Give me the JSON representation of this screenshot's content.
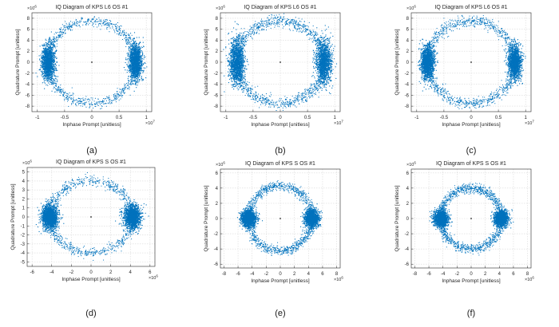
{
  "figure": {
    "panels": [
      "(a)",
      "(b)",
      "(c)",
      "(d)",
      "(e)",
      "(f)"
    ]
  },
  "chart_data": [
    {
      "type": "scatter",
      "title": "IQ Diagram of KPS L6 OS #1",
      "xlabel": "Inphase Prompt [unitless]",
      "ylabel": "Quadrature Prompt [unitless]",
      "x_exponent": "7",
      "y_exponent": "6",
      "xlim": [
        -1.1,
        1.1
      ],
      "ylim": [
        -9,
        9
      ],
      "xticks": [
        -1,
        -0.5,
        0,
        0.5,
        1
      ],
      "xtick_labels": [
        "-1",
        "-0.5",
        "0",
        "0.5",
        "1"
      ],
      "yticks": [
        -8,
        -6,
        -4,
        -2,
        0,
        2,
        4,
        6,
        8
      ],
      "ytick_labels": [
        "-8",
        "-6",
        "-4",
        "-2",
        "0",
        "2",
        "4",
        "6",
        "8"
      ],
      "grid": true,
      "series": [
        {
          "color": "#0072BD",
          "clusters": [
            {
              "center": [
                -0.8,
                0
              ],
              "spread": [
                0.06,
                1.6
              ],
              "count": 1400
            },
            {
              "center": [
                0.8,
                0
              ],
              "spread": [
                0.06,
                1.6
              ],
              "count": 1400
            }
          ],
          "ring": {
            "radius": [
              0.8,
              7.5
            ],
            "jitter": [
              0.04,
              0.45
            ],
            "count": 1100
          }
        }
      ],
      "label": "(a)"
    },
    {
      "type": "scatter",
      "title": "IQ Diagram of KPS L6 OS #1",
      "xlabel": "Inphase Prompt [unitless]",
      "ylabel": "Quadrature Prompt [unitless]",
      "x_exponent": "7",
      "y_exponent": "6",
      "xlim": [
        -1.1,
        1.1
      ],
      "ylim": [
        -9,
        9
      ],
      "xticks": [
        -1,
        -0.5,
        0,
        0.5,
        1
      ],
      "xtick_labels": [
        "-1",
        "-0.5",
        "0",
        "0.5",
        "1"
      ],
      "yticks": [
        -8,
        -6,
        -4,
        -2,
        0,
        2,
        4,
        6,
        8
      ],
      "ytick_labels": [
        "-8",
        "-6",
        "-4",
        "-2",
        "0",
        "2",
        "4",
        "6",
        "8"
      ],
      "grid": true,
      "series": [
        {
          "color": "#0072BD",
          "clusters": [
            {
              "center": [
                -0.8,
                0
              ],
              "spread": [
                0.07,
                2.0
              ],
              "count": 1400
            },
            {
              "center": [
                0.8,
                0
              ],
              "spread": [
                0.07,
                2.0
              ],
              "count": 1400
            }
          ],
          "ring": {
            "radius": [
              0.8,
              7.5
            ],
            "jitter": [
              0.05,
              0.55
            ],
            "count": 1400
          }
        }
      ],
      "label": "(b)"
    },
    {
      "type": "scatter",
      "title": "IQ Diagram of KPS L6 OS #1",
      "xlabel": "Inphase Prompt [unitless]",
      "ylabel": "Quadrature Prompt [unitless]",
      "x_exponent": "7",
      "y_exponent": "6",
      "xlim": [
        -1.1,
        1.1
      ],
      "ylim": [
        -9,
        9
      ],
      "xticks": [
        -1,
        -0.5,
        0,
        0.5,
        1
      ],
      "xtick_labels": [
        "-1",
        "-0.5",
        "0",
        "0.5",
        "1"
      ],
      "yticks": [
        -8,
        -6,
        -4,
        -2,
        0,
        2,
        4,
        6,
        8
      ],
      "ytick_labels": [
        "-8",
        "-6",
        "-4",
        "-2",
        "0",
        "2",
        "4",
        "6",
        "8"
      ],
      "grid": true,
      "series": [
        {
          "color": "#0072BD",
          "clusters": [
            {
              "center": [
                -0.8,
                0
              ],
              "spread": [
                0.06,
                1.5
              ],
              "count": 1400
            },
            {
              "center": [
                0.8,
                0
              ],
              "spread": [
                0.06,
                1.5
              ],
              "count": 1400
            }
          ],
          "ring": {
            "radius": [
              0.8,
              7.5
            ],
            "jitter": [
              0.045,
              0.5
            ],
            "count": 1300
          }
        }
      ],
      "label": "(c)"
    },
    {
      "type": "scatter",
      "title": "IQ Diagram of KPS S OS #1",
      "xlabel": "Inphase Prompt [unitless]",
      "ylabel": "Quadrature Prompt [unitless]",
      "x_exponent": "6",
      "y_exponent": "6",
      "xlim": [
        -6.5,
        6.5
      ],
      "ylim": [
        -5.5,
        5.5
      ],
      "xticks": [
        -6,
        -4,
        -2,
        0,
        2,
        4,
        6
      ],
      "xtick_labels": [
        "-6",
        "-4",
        "-2",
        "0",
        "2",
        "4",
        "6"
      ],
      "yticks": [
        -5,
        -4,
        -3,
        -2,
        -1,
        0,
        1,
        2,
        3,
        4,
        5
      ],
      "ytick_labels": [
        "-5",
        "-4",
        "-3",
        "-2",
        "-1",
        "0",
        "1",
        "2",
        "3",
        "4",
        "5"
      ],
      "grid": true,
      "series": [
        {
          "color": "#0072BD",
          "clusters": [
            {
              "center": [
                -4.2,
                0
              ],
              "spread": [
                0.4,
                0.65
              ],
              "count": 1700
            },
            {
              "center": [
                4.2,
                0
              ],
              "spread": [
                0.4,
                0.65
              ],
              "count": 1700
            }
          ],
          "ring": {
            "radius": [
              4.2,
              4.0
            ],
            "jitter": [
              0.25,
              0.28
            ],
            "count": 1000
          }
        }
      ],
      "label": "(d)"
    },
    {
      "type": "scatter",
      "title": "IQ Diagram of KPS S OS #1",
      "xlabel": "Inphase Prompt [unitless]",
      "ylabel": "Quadrature Prompt [unitless]",
      "x_exponent": "6",
      "y_exponent": "6",
      "xlim": [
        -8.5,
        8.5
      ],
      "ylim": [
        -6.5,
        6.5
      ],
      "xticks": [
        -8,
        -6,
        -4,
        -2,
        0,
        2,
        4,
        6,
        8
      ],
      "xtick_labels": [
        "-8",
        "-6",
        "-4",
        "-2",
        "0",
        "2",
        "4",
        "6",
        "8"
      ],
      "yticks": [
        -6,
        -4,
        -2,
        0,
        2,
        4,
        6
      ],
      "ytick_labels": [
        "-6",
        "-4",
        "-2",
        "0",
        "2",
        "4",
        "6"
      ],
      "grid": true,
      "series": [
        {
          "color": "#0072BD",
          "clusters": [
            {
              "center": [
                -4.5,
                0
              ],
              "spread": [
                0.5,
                0.55
              ],
              "count": 1500
            },
            {
              "center": [
                4.5,
                0
              ],
              "spread": [
                0.5,
                0.55
              ],
              "count": 1500
            }
          ],
          "ring": {
            "radius": [
              4.5,
              4.3
            ],
            "jitter": [
              0.3,
              0.3
            ],
            "count": 1300
          }
        }
      ],
      "label": "(e)"
    },
    {
      "type": "scatter",
      "title": "IQ Diagram of KPS S OS #1",
      "xlabel": "Inphase Prompt [unitless]",
      "ylabel": "Quadrature Prompt [unitless]",
      "x_exponent": "6",
      "y_exponent": "6",
      "xlim": [
        -8.5,
        8.5
      ],
      "ylim": [
        -6.5,
        6.5
      ],
      "xticks": [
        -8,
        -6,
        -4,
        -2,
        0,
        2,
        4,
        6,
        8
      ],
      "xtick_labels": [
        "-8",
        "-6",
        "-4",
        "-2",
        "0",
        "2",
        "4",
        "6",
        "8"
      ],
      "yticks": [
        -6,
        -4,
        -2,
        0,
        2,
        4,
        6
      ],
      "ytick_labels": [
        "-6",
        "-4",
        "-2",
        "0",
        "2",
        "4",
        "6"
      ],
      "grid": true,
      "series": [
        {
          "color": "#0072BD",
          "clusters": [
            {
              "center": [
                -4.3,
                0
              ],
              "spread": [
                0.5,
                0.5
              ],
              "count": 1500
            },
            {
              "center": [
                4.3,
                0
              ],
              "spread": [
                0.5,
                0.5
              ],
              "count": 1500
            }
          ],
          "ring": {
            "radius": [
              4.3,
              4.0
            ],
            "jitter": [
              0.3,
              0.3
            ],
            "count": 1400
          }
        }
      ],
      "label": "(f)"
    }
  ]
}
